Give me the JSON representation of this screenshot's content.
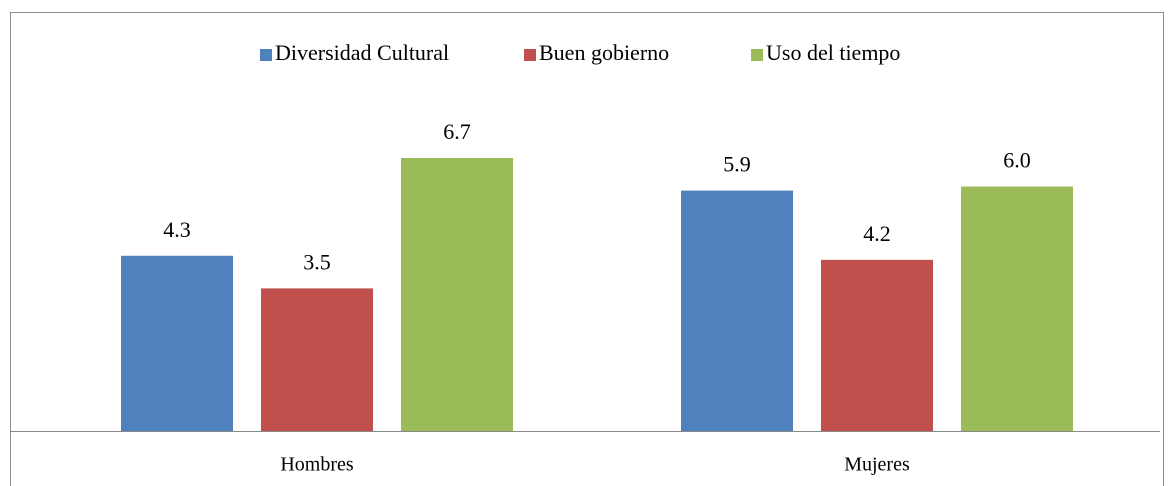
{
  "chart_data": {
    "type": "bar",
    "categories": [
      "Hombres",
      "Mujeres"
    ],
    "series": [
      {
        "name": "Diversidad Cultural",
        "color": "#4f81bd",
        "values": [
          4.3,
          5.9
        ],
        "value_labels": [
          "4.3",
          "5.9"
        ]
      },
      {
        "name": "Buen gobierno",
        "color": "#c0504d",
        "values": [
          3.5,
          4.2
        ],
        "value_labels": [
          "3.5",
          "4.2"
        ]
      },
      {
        "name": "Uso del tiempo",
        "color": "#9bbb59",
        "values": [
          6.7,
          6.0
        ],
        "value_labels": [
          "6.7",
          "6.0"
        ]
      }
    ],
    "ylim": [
      0,
      8
    ],
    "legend": "top"
  }
}
